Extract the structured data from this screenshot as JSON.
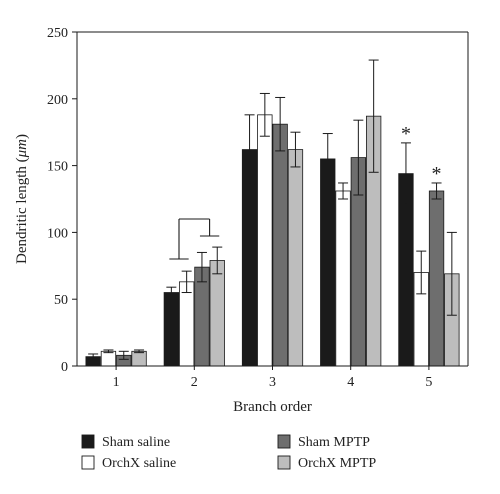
{
  "chart_data": {
    "type": "bar",
    "categories": [
      "1",
      "2",
      "3",
      "4",
      "5"
    ],
    "xlabel": "Branch order",
    "ylabel_prefix": "Dendritic length (",
    "ylabel_unit": "μm",
    "ylabel_suffix": ")",
    "ylim": [
      0,
      250
    ],
    "yticks": [
      0,
      50,
      100,
      150,
      200,
      250
    ],
    "series": [
      {
        "name": "Sham saline",
        "color": "#1a1a1a",
        "values": [
          7,
          55,
          162,
          155,
          144
        ],
        "errors": [
          2,
          4,
          26,
          19,
          23
        ]
      },
      {
        "name": "OrchX saline",
        "color": "#ffffff",
        "values": [
          11,
          63,
          188,
          131,
          70
        ],
        "errors": [
          1,
          8,
          16,
          6,
          16
        ]
      },
      {
        "name": "Sham MPTP",
        "color": "#6e6e6e",
        "values": [
          8,
          74,
          181,
          156,
          131
        ],
        "errors": [
          3,
          11,
          20,
          28,
          6
        ]
      },
      {
        "name": "OrchX MPTP",
        "color": "#bdbdbd",
        "values": [
          11,
          79,
          162,
          187,
          69
        ],
        "errors": [
          1,
          10,
          13,
          42,
          31
        ]
      }
    ],
    "annotations": [
      {
        "text": "*",
        "category": "5",
        "series": "Sham saline"
      },
      {
        "text": "*",
        "category": "5",
        "series": "Sham MPTP"
      }
    ],
    "significance_bracket": {
      "category": "2",
      "left_pair": [
        "Sham saline",
        "OrchX saline"
      ],
      "right_pair": [
        "Sham MPTP",
        "OrchX MPTP"
      ]
    },
    "grid": false,
    "legend_placement": "bottom"
  }
}
